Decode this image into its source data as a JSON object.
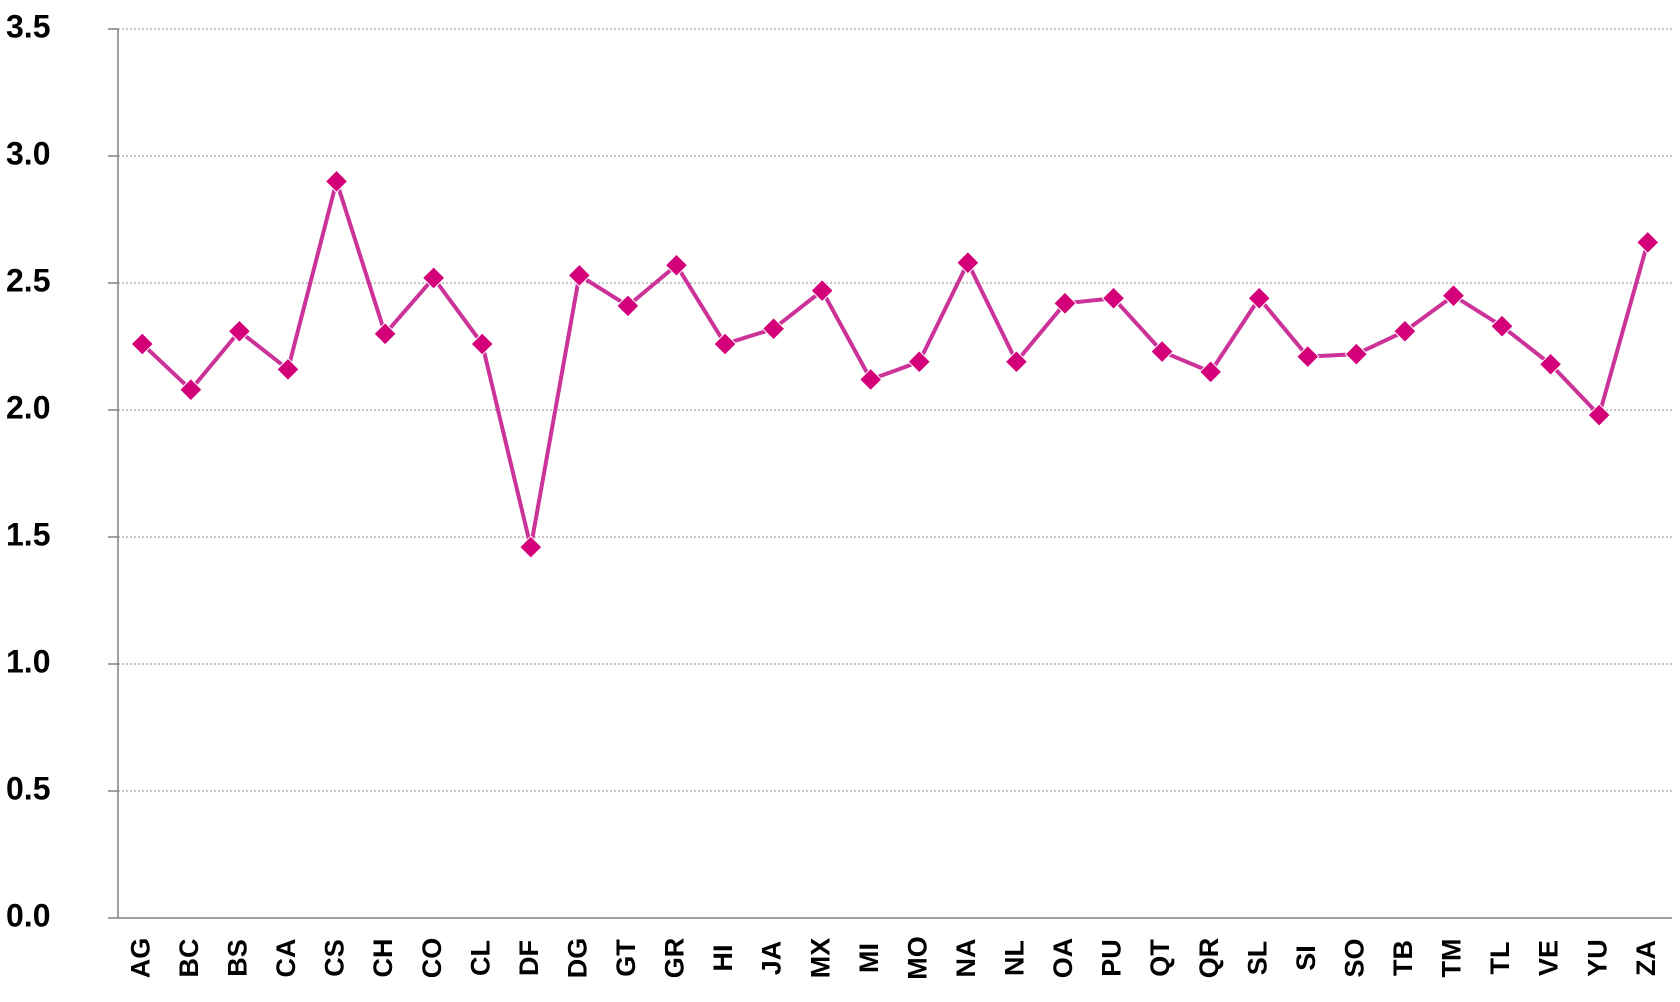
{
  "chart_data": {
    "type": "line",
    "categories": [
      "AG",
      "BC",
      "BS",
      "CA",
      "CS",
      "CH",
      "CO",
      "CL",
      "DF",
      "DG",
      "GT",
      "GR",
      "HI",
      "JA",
      "MX",
      "MI",
      "MO",
      "NA",
      "NL",
      "OA",
      "PU",
      "QT",
      "QR",
      "SL",
      "SI",
      "SO",
      "TB",
      "TM",
      "TL",
      "VE",
      "YU",
      "ZA"
    ],
    "series": [
      {
        "color": "#cc3399",
        "marker_color": "#d4007a",
        "values": [
          2.26,
          2.08,
          2.31,
          2.16,
          2.9,
          2.3,
          2.52,
          2.26,
          1.46,
          2.53,
          2.41,
          2.57,
          2.26,
          2.32,
          2.47,
          2.12,
          2.19,
          2.58,
          2.19,
          2.42,
          2.44,
          2.23,
          2.15,
          2.44,
          2.21,
          2.22,
          2.31,
          2.45,
          2.33,
          2.18,
          1.98,
          2.66
        ]
      }
    ],
    "ylim": [
      0,
      3.5
    ],
    "yticks": [
      {
        "value": 0,
        "label": "0.0"
      },
      0.5,
      {
        "value": 1,
        "label": "1.0"
      },
      1.5,
      {
        "value": 2,
        "label": "2.0"
      },
      2.5,
      {
        "value": 3,
        "label": "3.0"
      },
      3.5
    ],
    "grid": true
  }
}
